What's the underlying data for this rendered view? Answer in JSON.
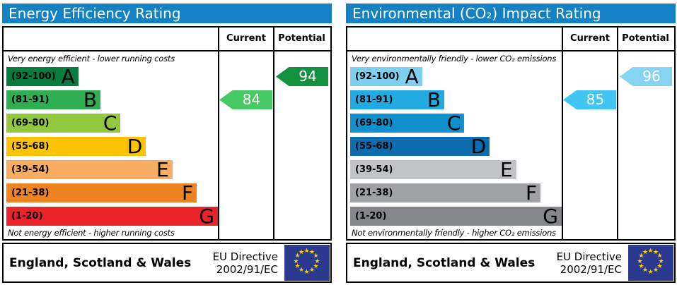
{
  "colors": {
    "header_bg": "#1481c4",
    "eu_flag_bg": "#2b3a8e",
    "eu_star": "#ffcc00"
  },
  "panels": [
    {
      "title": "Energy Efficiency Rating",
      "columns": {
        "current": "Current",
        "potential": "Potential"
      },
      "top_note": "Very energy efficient - lower running costs",
      "bottom_note": "Not energy efficient - higher running costs",
      "bands": [
        {
          "range": "(92-100)",
          "letter": "A",
          "color": "#077c3d",
          "width_pct": 34
        },
        {
          "range": "(81-91)",
          "letter": "B",
          "color": "#2fae52",
          "width_pct": 44.5
        },
        {
          "range": "(69-80)",
          "letter": "C",
          "color": "#93c83e",
          "width_pct": 54
        },
        {
          "range": "(55-68)",
          "letter": "D",
          "color": "#fcc400",
          "width_pct": 66
        },
        {
          "range": "(39-54)",
          "letter": "E",
          "color": "#f9ad62",
          "width_pct": 78.5
        },
        {
          "range": "(21-38)",
          "letter": "F",
          "color": "#ee8420",
          "width_pct": 90
        },
        {
          "range": "(1-20)",
          "letter": "G",
          "color": "#e92328",
          "width_pct": 100
        }
      ],
      "current": {
        "value": "84",
        "band_index": 1,
        "color": "#47ca64"
      },
      "potential": {
        "value": "94",
        "band_index": 0,
        "color": "#12913f"
      },
      "footer": {
        "region": "England, Scotland & Wales",
        "directive_line1": "EU Directive",
        "directive_line2": "2002/91/EC"
      }
    },
    {
      "title": "Environmental (CO₂) Impact Rating",
      "columns": {
        "current": "Current",
        "potential": "Potential"
      },
      "top_note": "Very environmentally friendly - lower CO₂ emissions",
      "bottom_note": "Not environmentally friendly - higher CO₂ emissions",
      "bands": [
        {
          "range": "(92-100)",
          "letter": "A",
          "color": "#7ed0f0",
          "width_pct": 34
        },
        {
          "range": "(81-91)",
          "letter": "B",
          "color": "#22aae2",
          "width_pct": 44.5
        },
        {
          "range": "(69-80)",
          "letter": "C",
          "color": "#1190ce",
          "width_pct": 54
        },
        {
          "range": "(55-68)",
          "letter": "D",
          "color": "#0b6daf",
          "width_pct": 66
        },
        {
          "range": "(39-54)",
          "letter": "E",
          "color": "#c2c3c7",
          "width_pct": 78.5
        },
        {
          "range": "(21-38)",
          "letter": "F",
          "color": "#a1a2a6",
          "width_pct": 90
        },
        {
          "range": "(1-20)",
          "letter": "G",
          "color": "#85868a",
          "width_pct": 100
        }
      ],
      "current": {
        "value": "85",
        "band_index": 1,
        "color": "#41c6f3"
      },
      "potential": {
        "value": "96",
        "band_index": 0,
        "color": "#84d4f2"
      },
      "footer": {
        "region": "England, Scotland & Wales",
        "directive_line1": "EU Directive",
        "directive_line2": "2002/91/EC"
      }
    }
  ],
  "chart_data": [
    {
      "type": "bar",
      "title": "Energy Efficiency Rating",
      "categories": [
        "A (92-100)",
        "B (81-91)",
        "C (69-80)",
        "D (55-68)",
        "E (39-54)",
        "F (21-38)",
        "G (1-20)"
      ],
      "series": [
        {
          "name": "Current rating",
          "values": [
            84
          ],
          "band": "B"
        },
        {
          "name": "Potential rating",
          "values": [
            94
          ],
          "band": "A"
        }
      ],
      "xlabel": "",
      "ylabel": "",
      "xlim": [
        1,
        100
      ],
      "annotations": [
        "Very energy efficient - lower running costs",
        "Not energy efficient - higher running costs",
        "England, Scotland & Wales",
        "EU Directive 2002/91/EC"
      ],
      "legend_position": "columns: Current | Potential",
      "grid": false
    },
    {
      "type": "bar",
      "title": "Environmental (CO₂) Impact Rating",
      "categories": [
        "A (92-100)",
        "B (81-91)",
        "C (69-80)",
        "D (55-68)",
        "E (39-54)",
        "F (21-38)",
        "G (1-20)"
      ],
      "series": [
        {
          "name": "Current rating",
          "values": [
            85
          ],
          "band": "B"
        },
        {
          "name": "Potential rating",
          "values": [
            96
          ],
          "band": "A"
        }
      ],
      "xlabel": "",
      "ylabel": "",
      "xlim": [
        1,
        100
      ],
      "annotations": [
        "Very environmentally friendly - lower CO₂ emissions",
        "Not environmentally friendly - higher CO₂ emissions",
        "England, Scotland & Wales",
        "EU Directive 2002/91/EC"
      ],
      "legend_position": "columns: Current | Potential",
      "grid": false
    }
  ]
}
